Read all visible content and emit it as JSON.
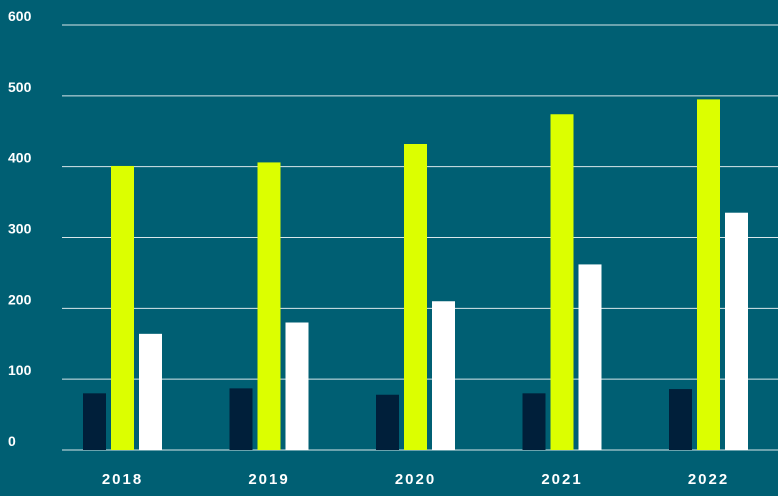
{
  "chart_data": {
    "type": "bar",
    "title": "",
    "xlabel": "",
    "ylabel": "",
    "ylim": [
      0,
      600
    ],
    "y_ticks": [
      "0",
      "100",
      "200",
      "300",
      "400",
      "500",
      "600"
    ],
    "categories": [
      "2018",
      "2019",
      "2020",
      "2021",
      "2022"
    ],
    "legend": "none",
    "grid": true,
    "series": [
      {
        "color": "#001f3a",
        "values": [
          80,
          87,
          78,
          80,
          86
        ]
      },
      {
        "color": "#dcff00",
        "values": [
          401,
          406,
          432,
          474,
          495
        ]
      },
      {
        "color": "#ffffff",
        "values": [
          164,
          180,
          210,
          262,
          335
        ]
      }
    ]
  },
  "colors": {
    "background": "#005f73",
    "gridline": "#ffffff",
    "text": "#ffffff"
  }
}
